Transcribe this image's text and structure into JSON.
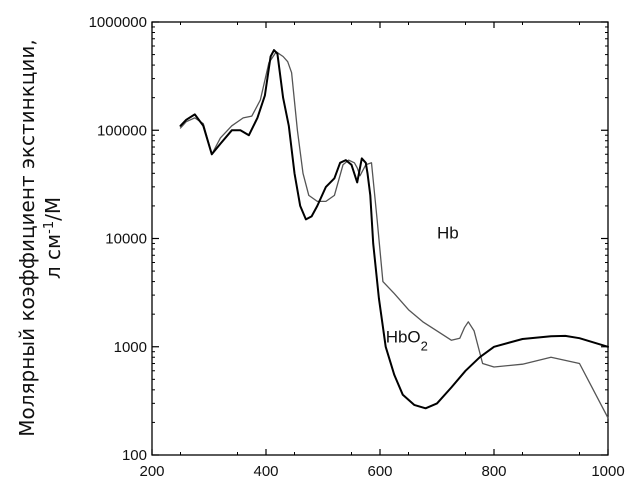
{
  "chart_data": {
    "type": "line",
    "xlabel": "",
    "ylabel_line1": "Молярный коэффициент экстинкции,",
    "ylabel_line2_prefix": "л см",
    "ylabel_line2_sup": "-1",
    "ylabel_line2_suffix": "/М",
    "xlim": [
      200,
      1000
    ],
    "ylim": [
      100,
      1000000
    ],
    "yscale": "log",
    "grid": false,
    "x_ticks": [
      200,
      400,
      600,
      800,
      1000
    ],
    "x_tick_labels": [
      "200",
      "400",
      "600",
      "800",
      "1000"
    ],
    "y_ticks": [
      100,
      1000,
      10000,
      100000,
      1000000
    ],
    "y_tick_labels": [
      "100",
      "1000",
      "10000",
      "100000",
      "1000000"
    ],
    "series": [
      {
        "key": "hb",
        "label": "Hb",
        "label_at": [
          700,
          10000
        ],
        "color": "#555555",
        "x": [
          250,
          260,
          275,
          290,
          305,
          320,
          340,
          360,
          375,
          390,
          405,
          418,
          425,
          430,
          438,
          445,
          455,
          465,
          475,
          490,
          505,
          520,
          535,
          545,
          555,
          560,
          565,
          575,
          585,
          595,
          605,
          625,
          650,
          675,
          700,
          725,
          740,
          748,
          755,
          765,
          780,
          800,
          850,
          900,
          950,
          1000
        ],
        "y": [
          105000,
          120000,
          130000,
          115000,
          60000,
          85000,
          110000,
          130000,
          135000,
          190000,
          420000,
          530000,
          500000,
          480000,
          430000,
          340000,
          100000,
          40000,
          25000,
          22000,
          22000,
          25000,
          48000,
          53000,
          50000,
          45000,
          38000,
          48000,
          50000,
          15000,
          4000,
          3100,
          2200,
          1700,
          1400,
          1150,
          1200,
          1500,
          1700,
          1400,
          700,
          650,
          690,
          800,
          700,
          220
        ]
      },
      {
        "key": "hbo2",
        "label_base": "HbO",
        "label_sub": "2",
        "label_at": [
          610,
          1100
        ],
        "color": "#000000",
        "x": [
          250,
          260,
          275,
          290,
          305,
          320,
          340,
          355,
          370,
          385,
          398,
          408,
          414,
          420,
          430,
          440,
          450,
          460,
          470,
          480,
          490,
          505,
          520,
          530,
          540,
          550,
          560,
          565,
          568,
          575,
          578,
          583,
          588,
          598,
          610,
          625,
          640,
          660,
          680,
          700,
          725,
          750,
          775,
          800,
          850,
          900,
          925,
          950,
          1000
        ],
        "y": [
          110000,
          125000,
          140000,
          110000,
          60000,
          75000,
          100000,
          100000,
          90000,
          130000,
          210000,
          480000,
          550000,
          510000,
          200000,
          110000,
          40000,
          20000,
          15000,
          16000,
          20000,
          30000,
          36000,
          50000,
          53000,
          48000,
          33000,
          45000,
          55000,
          50000,
          40000,
          25000,
          9000,
          2800,
          1000,
          550,
          360,
          290,
          270,
          300,
          420,
          600,
          800,
          1000,
          1180,
          1250,
          1260,
          1200,
          1000
        ]
      }
    ]
  }
}
